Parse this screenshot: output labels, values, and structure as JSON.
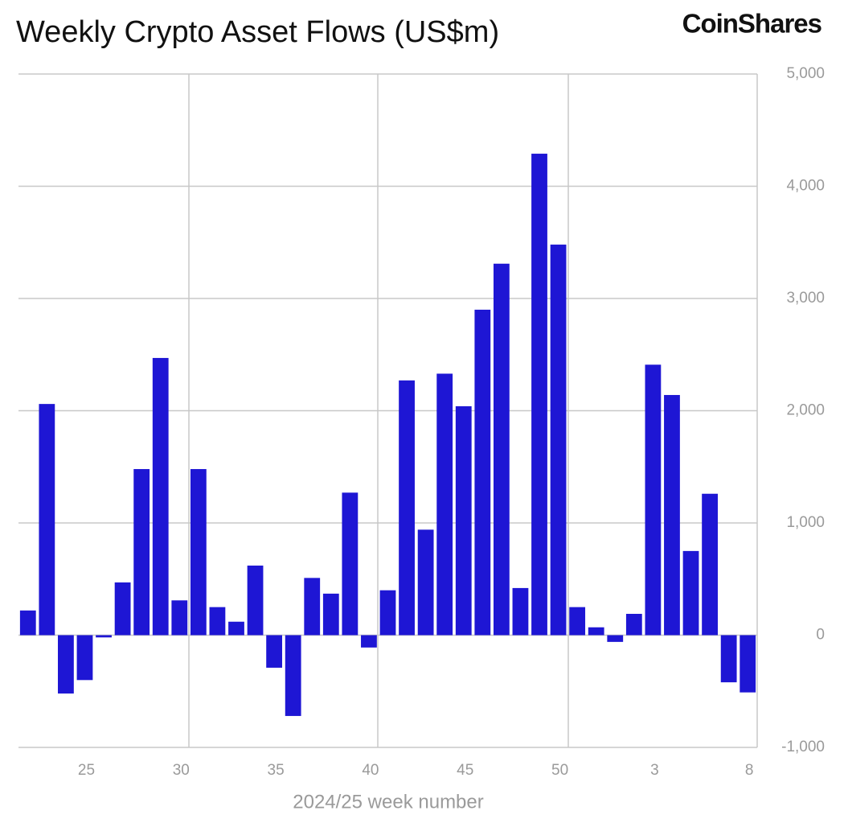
{
  "brand": "CoinShares",
  "chart_data": {
    "type": "bar",
    "title": "Weekly Crypto Asset Flows (US$m)",
    "xlabel": "2024/25 week number",
    "categories": [
      null,
      null,
      null,
      "25",
      null,
      null,
      null,
      null,
      "30",
      null,
      null,
      null,
      null,
      "35",
      null,
      null,
      null,
      null,
      "40",
      null,
      null,
      null,
      null,
      "45",
      null,
      null,
      null,
      null,
      "50",
      null,
      null,
      null,
      null,
      "3",
      null,
      null,
      null,
      null,
      "8"
    ],
    "values": [
      220,
      2060,
      -520,
      -400,
      -20,
      470,
      1480,
      2470,
      310,
      1480,
      250,
      120,
      620,
      -290,
      -720,
      510,
      370,
      1270,
      -110,
      400,
      2270,
      940,
      2330,
      2040,
      2900,
      3310,
      420,
      4290,
      3480,
      250,
      70,
      -60,
      190,
      2410,
      2140,
      750,
      1260,
      -420,
      -510
    ],
    "color": "#1e16d4",
    "ylim": [
      -1000,
      5000
    ],
    "yticks": [
      {
        "value": -1000,
        "label": "-1,000"
      },
      0,
      {
        "value": 1000,
        "label": "1,000"
      },
      {
        "value": 2000,
        "label": "2,000"
      },
      {
        "value": 3000,
        "label": "3,000"
      },
      {
        "value": 4000,
        "label": "4,000"
      },
      {
        "value": 5000,
        "label": "5,000"
      }
    ],
    "grid": true
  }
}
